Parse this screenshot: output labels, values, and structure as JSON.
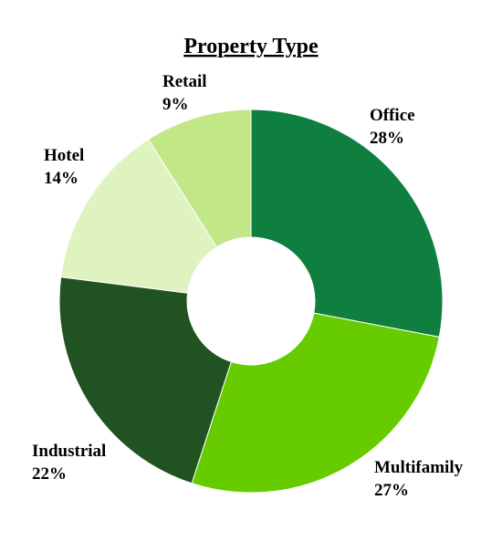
{
  "chart_data": {
    "type": "pie",
    "title": "Property Type",
    "donut": true,
    "start_angle_deg": 0,
    "direction": "clockwise",
    "slices": [
      {
        "label": "Office",
        "value": 28,
        "value_label": "28%",
        "color": "#0f7f40"
      },
      {
        "label": "Multifamily",
        "value": 27,
        "value_label": "27%",
        "color": "#66cc00"
      },
      {
        "label": "Industrial",
        "value": 22,
        "value_label": "22%",
        "color": "#215221"
      },
      {
        "label": "Hotel",
        "value": 14,
        "value_label": "14%",
        "color": "#def3c0"
      },
      {
        "label": "Retail",
        "value": 9,
        "value_label": "9%",
        "color": "#c1e787"
      }
    ],
    "legend": "none"
  }
}
